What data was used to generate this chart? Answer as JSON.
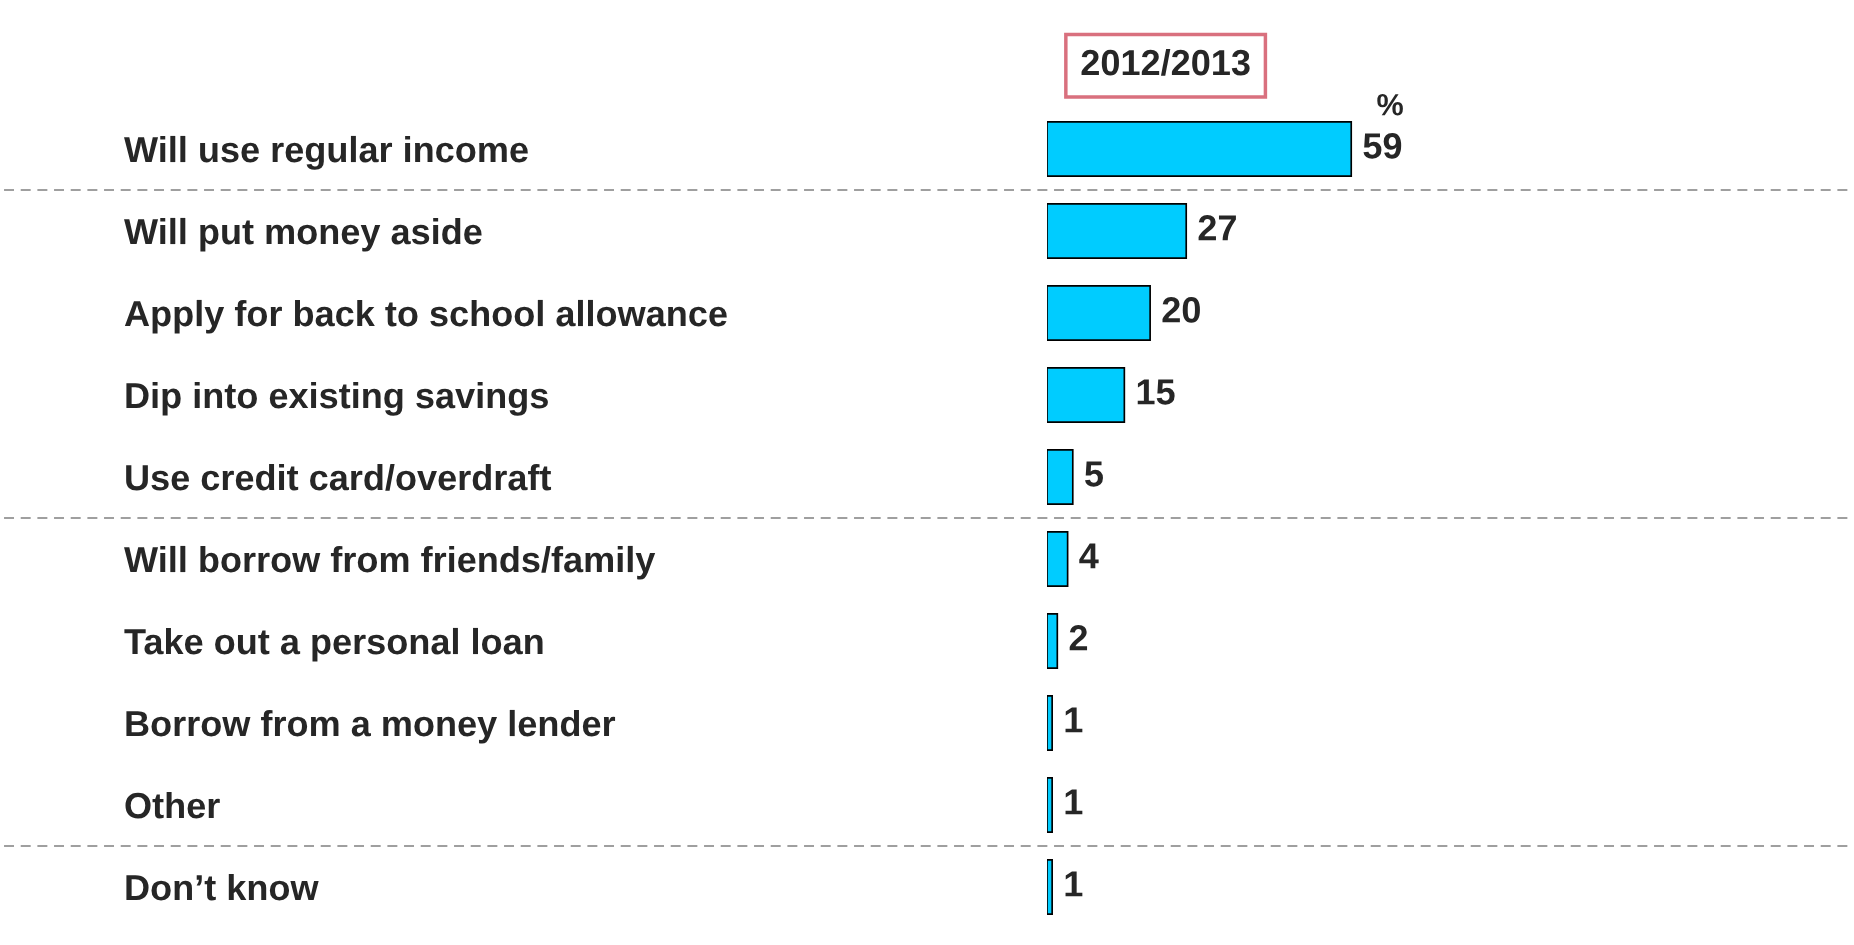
{
  "chart_data": {
    "type": "bar",
    "orientation": "horizontal",
    "title": "2012/2013",
    "categories": [
      "Will use regular income",
      "Will put money aside",
      "Apply for back to school allowance",
      "Dip into existing savings",
      "Use credit card/overdraft",
      "Will borrow from friends/family",
      "Take out a personal loan",
      "Borrow from a money lender",
      "Other",
      "Don’t know"
    ],
    "values": [
      59,
      27,
      20,
      15,
      5,
      4,
      2,
      1,
      1,
      1
    ],
    "color": "#00ccff",
    "data_labels": true,
    "annotations": [
      "%"
    ],
    "tick_labels": "y",
    "grid": false
  }
}
